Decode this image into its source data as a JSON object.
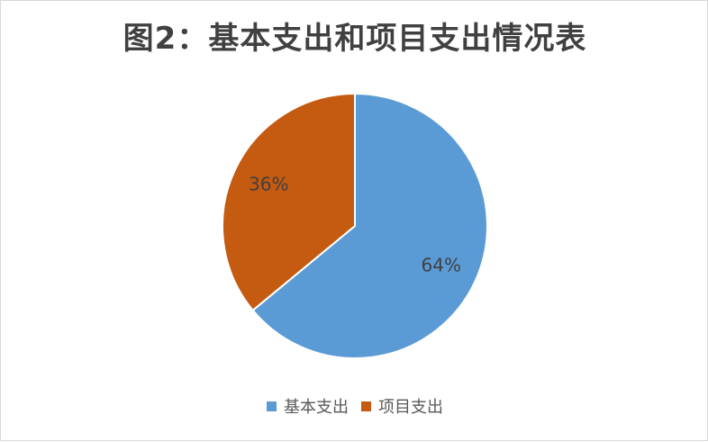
{
  "chart_data": {
    "type": "pie",
    "title": "图2：基本支出和项目支出情况表",
    "categories": [
      "基本支出",
      "项目支出"
    ],
    "values": [
      64,
      36
    ],
    "labels": [
      "64%",
      "36%"
    ],
    "colors": [
      "#5B9BD5",
      "#C55A11"
    ],
    "legend_position": "bottom"
  }
}
